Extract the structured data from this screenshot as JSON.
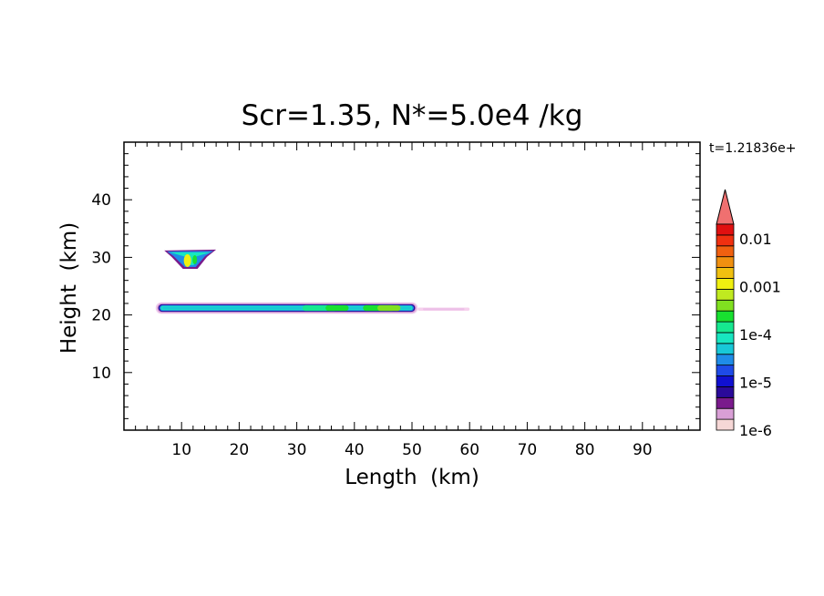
{
  "chart_data": {
    "type": "heatmap",
    "title": "Scr=1.35, N*=5.0e4 /kg",
    "time_label": "t=1.21836e+",
    "xlabel": "Length  (km)",
    "ylabel": "Height  (km)",
    "xlim": [
      0,
      100
    ],
    "ylim": [
      0,
      50
    ],
    "x_ticks": [
      10,
      20,
      30,
      40,
      50,
      60,
      70,
      80,
      90
    ],
    "y_ticks": [
      10,
      20,
      30,
      40
    ],
    "colorbar": {
      "scale": "log",
      "range": [
        1e-06,
        0.02
      ],
      "tick_labels": [
        "0.01",
        "0.001",
        "1e-4",
        "1e-5",
        "1e-6"
      ],
      "tick_values": [
        0.01,
        0.001,
        0.0001,
        1e-05,
        1e-06
      ],
      "colors": [
        "#f6d7d6",
        "#d99fd6",
        "#7a1a8c",
        "#2a0a9a",
        "#1010d0",
        "#1e4be8",
        "#1f8ce8",
        "#18c8d8",
        "#18e6c0",
        "#16e890",
        "#18e030",
        "#80e020",
        "#c0ea20",
        "#f0f010",
        "#f0c010",
        "#f09010",
        "#f06010",
        "#f03010",
        "#e01010",
        "#f07070"
      ],
      "extend_top": true
    },
    "features": [
      {
        "name": "upper anvil",
        "x": [
          7,
          16
        ],
        "y": [
          28,
          31.5
        ]
      },
      {
        "name": "main layer",
        "x": [
          5.5,
          51
        ],
        "y": [
          20.2,
          22.2
        ]
      },
      {
        "name": "faint tail",
        "x": [
          51,
          60
        ],
        "y": [
          20.5,
          21.5
        ]
      }
    ]
  }
}
